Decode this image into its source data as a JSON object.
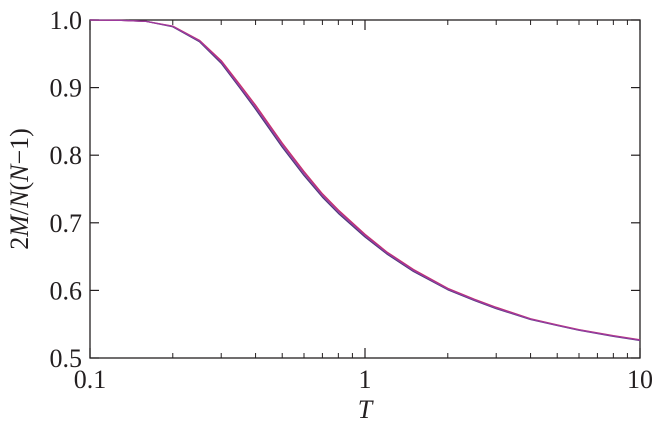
{
  "chart_data": {
    "type": "line",
    "title": "",
    "xlabel": "T",
    "ylabel": "2M/N(N−1)",
    "xscale": "log",
    "xlim": [
      0.1,
      10
    ],
    "ylim": [
      0.5,
      1.0
    ],
    "x_ticks": [
      0.1,
      1,
      10
    ],
    "x_tick_labels": [
      "0.1",
      "1",
      "10"
    ],
    "y_ticks": [
      0.5,
      0.6,
      0.7,
      0.8,
      0.9,
      1.0
    ],
    "y_tick_labels": [
      "0.5",
      "0.6",
      "0.7",
      "0.8",
      "0.9",
      "1.0"
    ],
    "grid": false,
    "legend": "none",
    "series": [
      {
        "color": "#4a3a7a",
        "x": [
          0.1,
          0.13,
          0.16,
          0.2,
          0.25,
          0.3,
          0.35,
          0.4,
          0.5,
          0.6,
          0.7,
          0.8,
          1.0,
          1.2,
          1.5,
          2.0,
          2.5,
          3.0,
          4.0,
          5.0,
          6.0,
          8.0,
          10.0
        ],
        "y": [
          1.0,
          0.9995,
          0.998,
          0.99,
          0.968,
          0.936,
          0.9,
          0.868,
          0.812,
          0.77,
          0.738,
          0.714,
          0.679,
          0.654,
          0.628,
          0.601,
          0.585,
          0.573,
          0.557,
          0.548,
          0.541,
          0.532,
          0.526
        ]
      },
      {
        "color": "#c8306a",
        "x": [
          0.1,
          0.13,
          0.16,
          0.2,
          0.25,
          0.3,
          0.35,
          0.4,
          0.5,
          0.6,
          0.7,
          0.8,
          1.0,
          1.2,
          1.5,
          2.0,
          2.5,
          3.0,
          4.0,
          5.0,
          6.0,
          8.0,
          10.0
        ],
        "y": [
          1.0,
          0.9995,
          0.998,
          0.991,
          0.97,
          0.94,
          0.905,
          0.874,
          0.818,
          0.776,
          0.743,
          0.719,
          0.683,
          0.657,
          0.631,
          0.603,
          0.587,
          0.575,
          0.558,
          0.549,
          0.542,
          0.533,
          0.527
        ]
      },
      {
        "color": "#9b3aa0",
        "x": [
          0.1,
          0.13,
          0.16,
          0.2,
          0.25,
          0.3,
          0.35,
          0.4,
          0.5,
          0.6,
          0.7,
          0.8,
          1.0,
          1.2,
          1.5,
          2.0,
          2.5,
          3.0,
          4.0,
          5.0,
          6.0,
          8.0,
          10.0
        ],
        "y": [
          1.0,
          0.9995,
          0.998,
          0.9905,
          0.969,
          0.938,
          0.902,
          0.871,
          0.815,
          0.773,
          0.7405,
          0.7165,
          0.681,
          0.6555,
          0.6295,
          0.602,
          0.586,
          0.574,
          0.5575,
          0.5485,
          0.5415,
          0.5325,
          0.5265
        ]
      }
    ]
  }
}
